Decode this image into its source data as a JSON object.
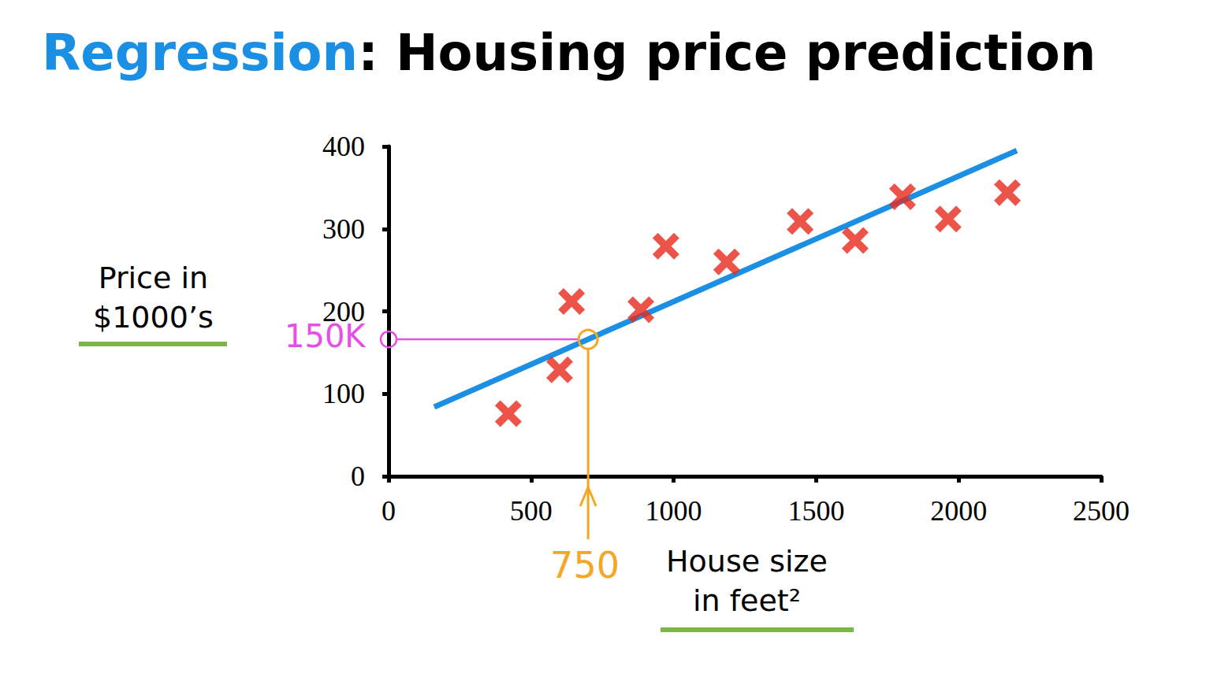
{
  "chart_data": {
    "type": "scatter",
    "title": "Regression: Housing price prediction",
    "xlabel": "House size\nin feet²",
    "ylabel": "Price in\n$1000’s",
    "xlim": [
      0,
      2500
    ],
    "xticks": [
      0,
      500,
      1000,
      1500,
      2000,
      2500
    ],
    "ylim": [
      0,
      400
    ],
    "yticks": [
      0,
      100,
      200,
      300,
      400
    ],
    "grid": false,
    "series": [
      {
        "type": "scatter",
        "marker": "x",
        "color": "#e8291c",
        "x": [
          420,
          600,
          642,
          885,
          973,
          1186,
          1444,
          1637,
          1803,
          1963,
          2171
        ],
        "values": [
          76,
          129,
          212,
          202,
          279,
          260,
          309,
          286,
          339,
          312,
          344
        ]
      },
      {
        "type": "line",
        "line_style": "solid",
        "color": "#1a8fe3",
        "x": [
          160,
          2204
        ],
        "values": [
          84,
          395
        ]
      }
    ],
    "annotation": {
      "x": 700,
      "y": 166,
      "x_text": "750",
      "x_color": "#f5a623",
      "y_text": "150K",
      "y_color": "#e84de8"
    }
  }
}
